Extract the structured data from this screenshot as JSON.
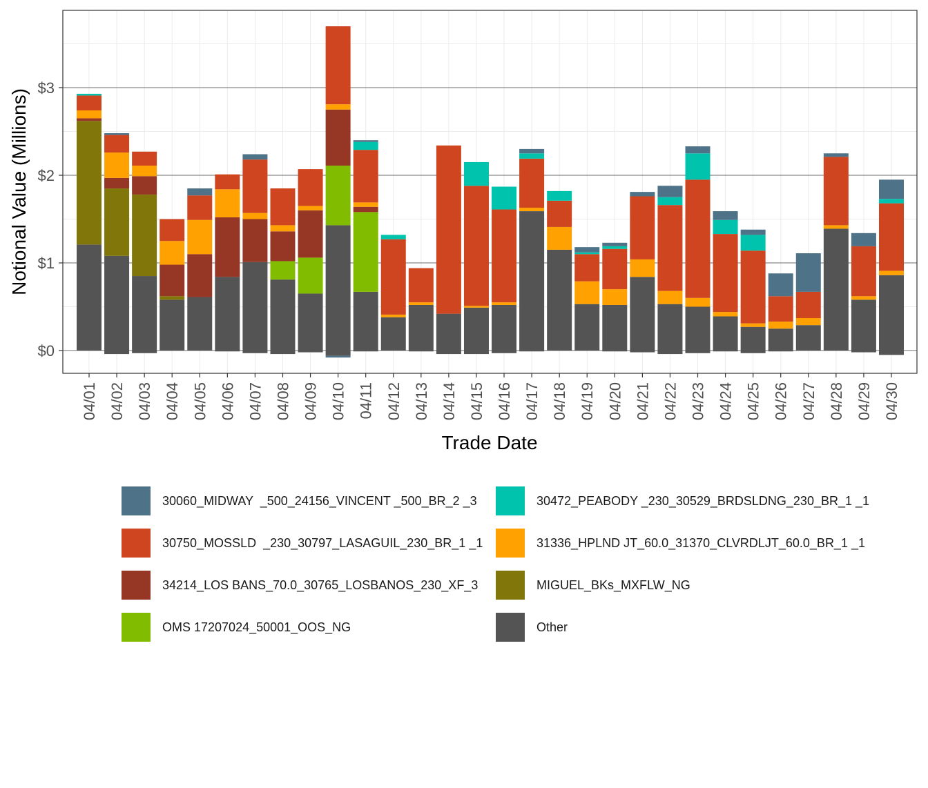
{
  "chart_data": {
    "type": "bar",
    "stacked": true,
    "xlabel": "Trade Date",
    "ylabel": "Notional Value (Millions)",
    "ylim": [
      -0.3,
      3.9
    ],
    "y_ticks": [
      0,
      1,
      2,
      3
    ],
    "y_tick_labels": [
      "$0",
      "$1",
      "$2",
      "$3"
    ],
    "grid": true,
    "legend_position": "bottom",
    "categories": [
      "04/01",
      "04/02",
      "04/03",
      "04/04",
      "04/05",
      "04/06",
      "04/07",
      "04/08",
      "04/09",
      "04/10",
      "04/11",
      "04/12",
      "04/13",
      "04/14",
      "04/15",
      "04/16",
      "04/17",
      "04/18",
      "04/19",
      "04/20",
      "04/21",
      "04/22",
      "04/23",
      "04/24",
      "04/25",
      "04/26",
      "04/27",
      "04/28",
      "04/29",
      "04/30"
    ],
    "series": [
      {
        "name": "30060_MIDWAY  _500_24156_VINCENT _500_BR_2 _3",
        "color": "#4e7389",
        "values": [
          0,
          0.02,
          0,
          0,
          0.08,
          0,
          0.06,
          0,
          0,
          -0.02,
          0.02,
          0,
          0,
          0,
          0,
          0,
          0.05,
          0,
          0.06,
          0.04,
          0.05,
          0.13,
          0.08,
          0.1,
          0.06,
          0.26,
          0.44,
          0.04,
          0.15,
          0.22
        ]
      },
      {
        "name": "30472_PEABODY _230_30529_BRDSLDNG_230_BR_1 _1",
        "color": "#00c3ad",
        "values": [
          0.02,
          0,
          0,
          0,
          0,
          0,
          0,
          0,
          0,
          0,
          0.09,
          0.05,
          0,
          0,
          0.27,
          0.26,
          0.06,
          0.11,
          0.02,
          0.03,
          0,
          0.09,
          0.3,
          0.16,
          0.18,
          0,
          0,
          0,
          0,
          0.05
        ]
      },
      {
        "name": "30750_MOSSLD  _230_30797_LASAGUIL_230_BR_1 _1",
        "color": "#ce4520",
        "values": [
          0.17,
          0.2,
          0.16,
          0.25,
          0.28,
          0.17,
          0.61,
          0.42,
          0.42,
          0.89,
          0.6,
          0.86,
          0.39,
          1.92,
          1.37,
          1.06,
          0.56,
          0.3,
          0.31,
          0.46,
          0.72,
          0.98,
          1.35,
          0.89,
          0.83,
          0.29,
          0.3,
          0.78,
          0.57,
          0.77
        ]
      },
      {
        "name": "31336_HPLND JT_60.0_31370_CLVRDLJT_60.0_BR_1 _1",
        "color": "#ffa100",
        "values": [
          0.09,
          0.29,
          0.12,
          0.27,
          0.39,
          0.32,
          0.07,
          0.07,
          0.05,
          0.06,
          0.05,
          0.03,
          0.03,
          0,
          0.02,
          0.03,
          0.04,
          0.26,
          0.26,
          0.18,
          0.2,
          0.15,
          0.1,
          0.05,
          0.04,
          0.08,
          0.08,
          0.04,
          0.04,
          0.05
        ]
      },
      {
        "name": "34214_LOS BANS_70.0_30765_LOSBANOS_230_XF_3",
        "color": "#963625",
        "values": [
          0.03,
          0.12,
          0.21,
          0.36,
          0.49,
          0.68,
          0.49,
          0.34,
          0.54,
          0.64,
          0.06,
          0,
          0,
          0,
          0,
          0,
          0,
          0,
          0,
          0,
          0,
          0,
          0,
          0,
          0,
          0,
          0,
          0,
          0,
          0
        ]
      },
      {
        "name": "MIGUEL_BKs_MXFLW_NG",
        "color": "#80760a",
        "values": [
          1.41,
          0.77,
          0.93,
          0.04,
          0,
          0,
          0,
          0,
          0,
          0,
          0,
          0,
          0,
          0,
          0,
          0,
          0,
          0,
          0,
          0,
          0,
          0,
          0,
          0,
          0,
          0,
          0,
          0,
          0,
          0
        ]
      },
      {
        "name": "OMS 17207024_50001_OOS_NG",
        "color": "#82bc00",
        "values": [
          0,
          0,
          0,
          0,
          0,
          0,
          0,
          0.21,
          0.41,
          0.68,
          0.91,
          0,
          0,
          0,
          0,
          0,
          0,
          0,
          0,
          0,
          0,
          0,
          0,
          0,
          0,
          0,
          0,
          0,
          0,
          0
        ]
      },
      {
        "name": "Other",
        "color": "#545454",
        "values": [
          1.21,
          1.08,
          0.85,
          0.58,
          0.61,
          0.84,
          1.01,
          0.81,
          0.65,
          1.43,
          0.67,
          0.38,
          0.52,
          0.42,
          0.49,
          0.52,
          1.59,
          1.15,
          0.53,
          0.52,
          0.84,
          0.53,
          0.5,
          0.39,
          0.27,
          0.25,
          0.29,
          1.39,
          0.58,
          0.86
        ]
      }
    ],
    "other_negative": [
      0,
      -0.04,
      -0.03,
      0,
      0,
      -0.01,
      -0.03,
      -0.04,
      -0.02,
      -0.06,
      -0.01,
      0,
      -0.01,
      -0.04,
      -0.04,
      -0.03,
      -0.01,
      0,
      0,
      -0.01,
      -0.02,
      -0.04,
      -0.03,
      -0.01,
      -0.03,
      -0.01,
      0,
      0,
      -0.02,
      -0.05
    ]
  }
}
